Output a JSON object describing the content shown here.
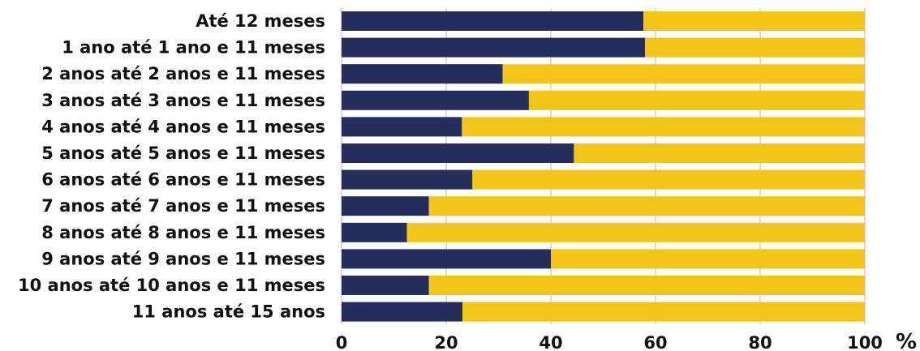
{
  "chart_data": {
    "type": "bar",
    "orientation": "horizontal",
    "stacked": true,
    "categories": [
      "Até 12 meses",
      "1 ano até 1 ano e 11 meses",
      "2 anos até 2 anos e 11 meses",
      "3 anos até 3 anos e 11 meses",
      "4 anos até 4 anos e 11 meses",
      "5 anos até 5 anos e 11 meses",
      "6 anos até 6 anos e 11 meses",
      "7 anos até 7 anos e 11 meses",
      "8 anos até 8 anos e 11 meses",
      "9 anos até 9 anos e 11 meses",
      "10 anos até 10 anos e 11 meses",
      "11 anos até 15 anos"
    ],
    "series": [
      {
        "values": [
          57.7,
          58.0,
          30.8,
          35.8,
          23.0,
          44.4,
          25.0,
          16.7,
          12.5,
          40.0,
          16.7,
          23.1
        ],
        "color": "#262e5e"
      },
      {
        "values": [
          42.3,
          42.0,
          69.2,
          64.2,
          77.0,
          55.6,
          75.0,
          83.3,
          87.5,
          60.0,
          83.3,
          76.9
        ],
        "color": "#f2c618"
      }
    ],
    "xlim": [
      0,
      100
    ],
    "xticks": [
      "0",
      "20",
      "40",
      "60",
      "80",
      "100"
    ],
    "x_unit": "%",
    "grid": true
  }
}
